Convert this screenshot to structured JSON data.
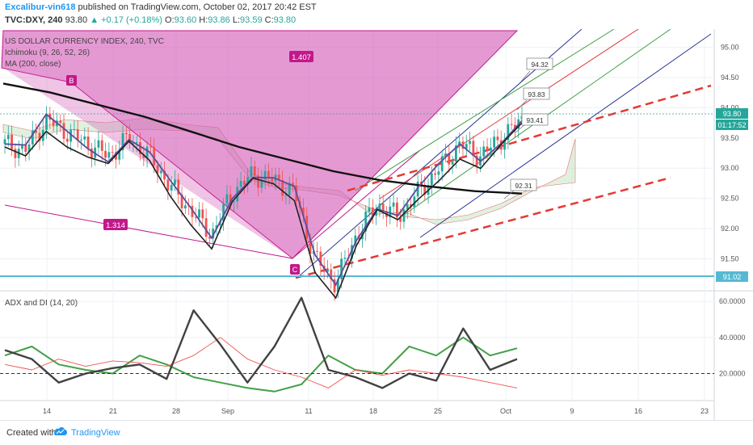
{
  "header": {
    "author": "Excalibur-vin618",
    "published_text": "published on TradingView.com, October 02, 2017 20:42 EST",
    "symbol": "TVC:DXY, 240",
    "last": "93.80",
    "change": "▲ +0.17 (+0.18%)",
    "open_label": "O:",
    "open": "93.60",
    "high_label": "H:",
    "high": "93.86",
    "low_label": "L:",
    "low": "93.59",
    "close_label": "C:",
    "close": "93.80"
  },
  "price_pane": {
    "title": "US DOLLAR CURRENCY INDEX, 240, TVC",
    "indicator_ichimoku": "Ichimoku (9, 26, 52, 26)",
    "indicator_ma": "MA (200, close)",
    "pattern_labels": {
      "b": "B",
      "c": "C",
      "ratio_upper": "1.407",
      "ratio_lower": "1.314"
    },
    "callouts": [
      "94.32",
      "93.83",
      "93.41",
      "92.31"
    ],
    "last_price_badge": "93.80",
    "countdown_badge": "01:17:52",
    "support_badge": "91.02"
  },
  "adx_pane": {
    "title": "ADX and DI (14, 20)"
  },
  "footer": {
    "created_with": "Created with",
    "brand": "TradingView"
  },
  "colors": {
    "pattern_fill": "#d455b5",
    "ma_line": "#111111",
    "support_line": "#56b9d3",
    "trend_dashed": "#e53935",
    "pitchfork_blue": "#283593",
    "pitchfork_green": "#43a047",
    "pitchfork_red": "#e53935",
    "di_plus": "#43a047",
    "di_minus": "#ef5350",
    "adx": "#424242",
    "up_candle": "#26a69a",
    "down_candle": "#ef5350"
  },
  "chart_data": [
    {
      "type": "line",
      "title": "US DOLLAR CURRENCY INDEX, 240, TVC",
      "x_ticks": [
        "14",
        "21",
        "28",
        "Sep",
        "11",
        "18",
        "25",
        "Oct",
        "9",
        "16",
        "23"
      ],
      "y_ticks": [
        91.5,
        92.0,
        92.5,
        93.0,
        93.5,
        94.0,
        94.5,
        95.0
      ],
      "ylim": [
        91.0,
        95.3
      ],
      "series": [
        {
          "name": "MA (200, close)",
          "values": [
            94.4,
            94.25,
            94.05,
            93.85,
            93.6,
            93.35,
            93.15,
            92.95,
            92.8,
            92.7,
            92.62,
            92.58
          ]
        },
        {
          "values": [
            93.4,
            93.3,
            93.8,
            93.6,
            93.4,
            93.2,
            93.5,
            93.2,
            92.7,
            92.3,
            91.9,
            92.6,
            92.9,
            92.8,
            92.6,
            91.5,
            91.1,
            91.9,
            92.4,
            92.2,
            92.6,
            93.0,
            93.4,
            93.2,
            93.5,
            93.8
          ]
        }
      ],
      "annotations": [
        "B",
        "C",
        "1.407",
        "1.314",
        "94.32",
        "93.83",
        "93.41",
        "92.31",
        "91.02"
      ]
    },
    {
      "type": "line",
      "title": "ADX and DI (14, 20)",
      "x_ticks": [
        "14",
        "21",
        "28",
        "Sep",
        "11",
        "18",
        "25",
        "Oct",
        "9",
        "16",
        "23"
      ],
      "y_ticks": [
        20,
        40,
        60
      ],
      "ylim": [
        5,
        65
      ],
      "threshold": 20,
      "series": [
        {
          "values": [
            30,
            35,
            25,
            22,
            20,
            30,
            25,
            18,
            15,
            12,
            10,
            14,
            30,
            22,
            20,
            35,
            30,
            40,
            30,
            34
          ]
        },
        {
          "values": [
            25,
            22,
            28,
            24,
            27,
            26,
            24,
            30,
            40,
            28,
            22,
            18,
            12,
            22,
            19,
            22,
            20,
            18,
            15,
            12
          ]
        },
        {
          "values": [
            33,
            28,
            15,
            20,
            23,
            25,
            17,
            55,
            36,
            15,
            35,
            62,
            22,
            18,
            12,
            20,
            16,
            45,
            22,
            28
          ]
        }
      ]
    }
  ]
}
